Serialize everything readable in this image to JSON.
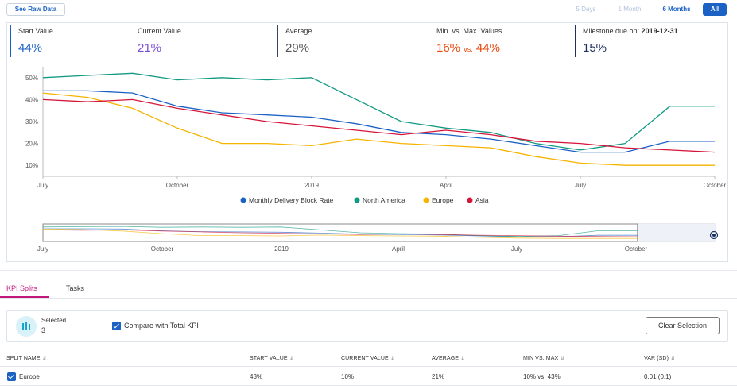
{
  "toolbar": {
    "raw_data_label": "See Raw Data",
    "ranges": [
      "5 Days",
      "1 Month",
      "6 Months",
      "All"
    ],
    "active_range": "All"
  },
  "stats": [
    {
      "label": "Start Value",
      "value": "44%",
      "color": "#1c62c4",
      "border": "#1c62c4"
    },
    {
      "label": "Current Value",
      "value": "21%",
      "color": "#7b4fd6",
      "border": "#8a63d8"
    },
    {
      "label": "Average",
      "value": "29%",
      "color": "#555555",
      "border": "#34495e"
    },
    {
      "label": "Min. vs. Max. Values",
      "min": "16%",
      "vs": "vs.",
      "max": "44%",
      "color": "#e8490f",
      "border": "#e8490f"
    },
    {
      "label": "Milestone due on:",
      "label_bold": "2019-12-31",
      "value": "15%",
      "color": "#1d3160",
      "border": "#1d3160"
    }
  ],
  "chart_data": {
    "type": "line",
    "x_ticks": [
      "July",
      "October",
      "2019",
      "April",
      "July",
      "October"
    ],
    "y_ticks": [
      "50%",
      "40%",
      "30%",
      "20%",
      "10%"
    ],
    "y_range": [
      5,
      55
    ],
    "x": [
      "2018-07",
      "2018-08",
      "2018-09",
      "2018-10",
      "2018-11",
      "2018-12",
      "2019-01",
      "2019-02",
      "2019-03",
      "2019-04",
      "2019-05",
      "2019-06",
      "2019-07",
      "2019-08",
      "2019-09",
      "2019-10"
    ],
    "series": [
      {
        "name": "Monthly Delivery Block Rate",
        "color": "#1c62c4",
        "values": [
          44,
          44,
          43,
          37,
          34,
          33,
          32,
          29,
          25,
          24,
          22,
          19,
          16,
          16,
          21,
          21
        ]
      },
      {
        "name": "North America",
        "color": "#139a84",
        "values": [
          50,
          51,
          52,
          49,
          50,
          49,
          50,
          40,
          30,
          27,
          25,
          20,
          17,
          20,
          37,
          37
        ]
      },
      {
        "name": "Europe",
        "color": "#f5b400",
        "values": [
          43,
          41,
          36,
          27,
          20,
          20,
          19,
          22,
          20,
          19,
          18,
          14,
          11,
          10,
          10,
          10
        ]
      },
      {
        "name": "Asia",
        "color": "#d6153a",
        "values": [
          40,
          39,
          40,
          36,
          33,
          30,
          28,
          26,
          24,
          26,
          24,
          21,
          20,
          18,
          17,
          16
        ]
      }
    ],
    "navigator_ticks": [
      "July",
      "October",
      "2019",
      "April",
      "July",
      "October"
    ]
  },
  "tabs": [
    {
      "label": "KPI Splits"
    },
    {
      "label": "Tasks"
    }
  ],
  "selection": {
    "title": "Selected",
    "count": "3",
    "compare_label": "Compare with Total KPI",
    "clear_label": "Clear Selection"
  },
  "table": {
    "columns": [
      "SPLIT NAME",
      "START VALUE",
      "CURRENT VALUE",
      "AVERAGE",
      "MIN VS. MAX",
      "VAR (SD)"
    ],
    "rows": [
      {
        "name": "Europe",
        "start": "43%",
        "current": "10%",
        "average": "21%",
        "minmax": "10% vs. 43%",
        "var": "0.01 (0.1)"
      }
    ]
  }
}
